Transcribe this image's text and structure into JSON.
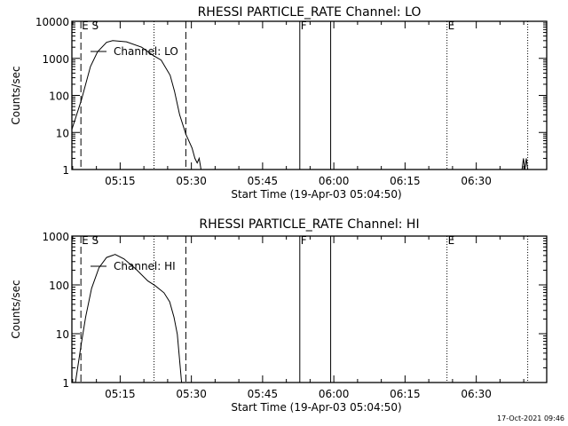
{
  "chart_data": [
    {
      "type": "line",
      "title": "RHESSI PARTICLE_RATE Channel: LO",
      "xlabel": "Start Time (19-Apr-03 05:04:50)",
      "ylabel": "Counts/sec",
      "yscale": "log",
      "ylim": [
        1,
        10000
      ],
      "yticks": [
        "1",
        "10",
        "100",
        "1000",
        "10000"
      ],
      "xlim_minutes_from_start": [
        0,
        100
      ],
      "xticks": [
        {
          "label": "05:15",
          "minutes": 10.1667
        },
        {
          "label": "05:30",
          "minutes": 25.1667
        },
        {
          "label": "05:45",
          "minutes": 40.1667
        },
        {
          "label": "06:00",
          "minutes": 55.1667
        },
        {
          "label": "06:15",
          "minutes": 70.1667
        },
        {
          "label": "06:30",
          "minutes": 85.1667
        }
      ],
      "legend": "Channel: LO",
      "legend_placement": "top-left",
      "markers": [
        {
          "minutes": 1.9,
          "style": "dashed",
          "label": "E S"
        },
        {
          "minutes": 17.3,
          "style": "dotted",
          "label": ""
        },
        {
          "minutes": 24.0,
          "style": "dashed",
          "label": ""
        },
        {
          "minutes": 48.0,
          "style": "solid",
          "label": "F"
        },
        {
          "minutes": 54.5,
          "style": "solid",
          "label": ""
        },
        {
          "minutes": 79.0,
          "style": "dotted",
          "label": "E"
        },
        {
          "minutes": 96.0,
          "style": "dotted",
          "label": ""
        }
      ],
      "series": [
        {
          "name": "LO",
          "x": [
            0,
            2.0,
            3.9,
            5.4,
            7.3,
            8.6,
            11.5,
            14.7,
            17.1,
            18.8,
            20.7,
            21.6,
            22.7,
            24.0,
            25.3,
            25.9,
            26.4,
            26.8,
            27.2,
            27.6
          ],
          "y": [
            12,
            75,
            600,
            1500,
            2700,
            3000,
            2800,
            2000,
            1200,
            900,
            350,
            130,
            30,
            9,
            3.8,
            2,
            1.5,
            2,
            1,
            1
          ]
        },
        {
          "name": "LO-tail",
          "x": [
            94.8,
            95.1,
            95.4,
            95.7,
            96.0
          ],
          "y": [
            1,
            2,
            1,
            2,
            1
          ]
        }
      ]
    },
    {
      "type": "line",
      "title": "RHESSI PARTICLE_RATE Channel: HI",
      "xlabel": "Start Time (19-Apr-03 05:04:50)",
      "ylabel": "Counts/sec",
      "yscale": "log",
      "ylim": [
        1,
        1000
      ],
      "yticks": [
        "1",
        "10",
        "100",
        "1000"
      ],
      "xlim_minutes_from_start": [
        0,
        100
      ],
      "xticks": [
        {
          "label": "05:15",
          "minutes": 10.1667
        },
        {
          "label": "05:30",
          "minutes": 25.1667
        },
        {
          "label": "05:45",
          "minutes": 40.1667
        },
        {
          "label": "06:00",
          "minutes": 55.1667
        },
        {
          "label": "06:15",
          "minutes": 70.1667
        },
        {
          "label": "06:30",
          "minutes": 85.1667
        }
      ],
      "legend": "Channel: HI",
      "legend_placement": "top-left",
      "markers": [
        {
          "minutes": 1.9,
          "style": "dashed",
          "label": "E S"
        },
        {
          "minutes": 17.3,
          "style": "dotted",
          "label": ""
        },
        {
          "minutes": 24.0,
          "style": "dashed",
          "label": ""
        },
        {
          "minutes": 48.0,
          "style": "solid",
          "label": "F"
        },
        {
          "minutes": 54.5,
          "style": "solid",
          "label": ""
        },
        {
          "minutes": 79.0,
          "style": "dotted",
          "label": "E"
        },
        {
          "minutes": 96.0,
          "style": "dotted",
          "label": ""
        }
      ],
      "series": [
        {
          "name": "HI",
          "x": [
            0.75,
            2.0,
            2.9,
            4.15,
            5.7,
            7.3,
            9.1,
            11.0,
            13.5,
            16.0,
            17.5,
            19.4,
            20.6,
            21.5,
            22.2,
            23.1
          ],
          "y": [
            1,
            6.4,
            22,
            85,
            224,
            365,
            420,
            340,
            210,
            120,
            97,
            69,
            45,
            22,
            9.7,
            1
          ]
        }
      ]
    }
  ],
  "footer": {
    "timestamp": "17-Oct-2021 09:46"
  }
}
